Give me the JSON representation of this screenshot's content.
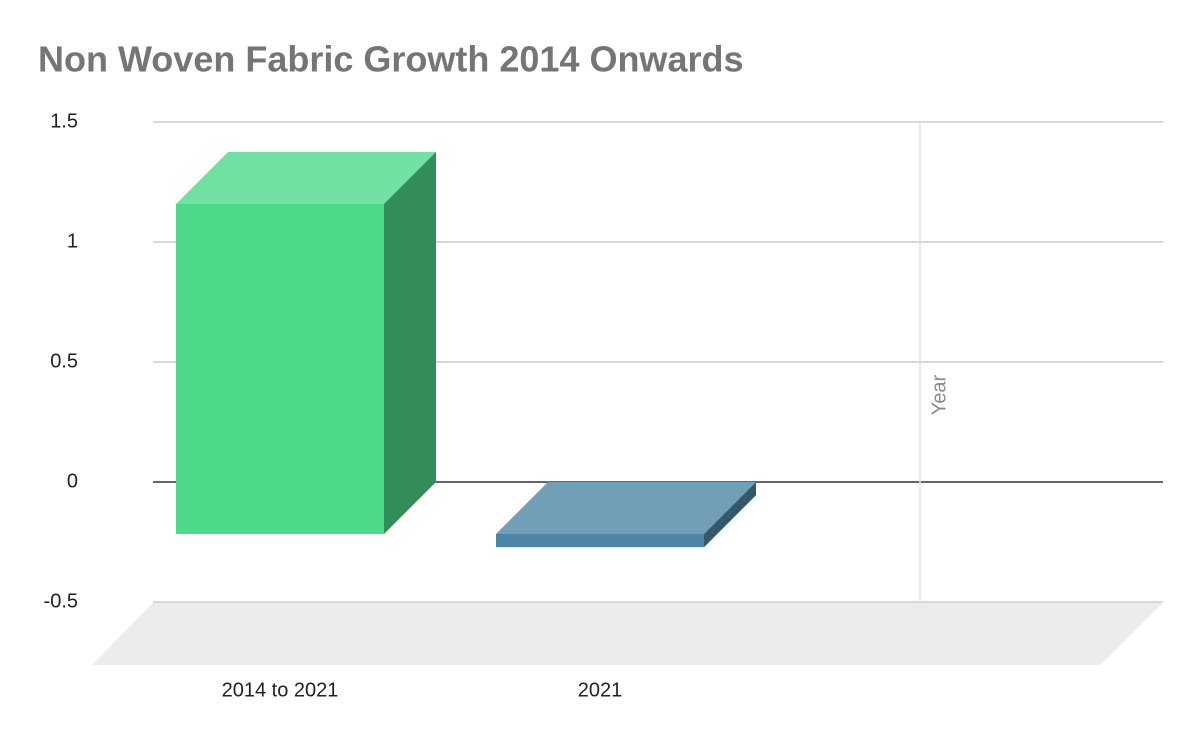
{
  "chart_data": {
    "type": "bar3d",
    "title": "Non Woven Fabric Growth 2014 Onwards",
    "categories": [
      "2014 to 2021",
      "2021"
    ],
    "values": [
      1.375,
      -0.055
    ],
    "colors": [
      "#4dd98a",
      "#4e87a5"
    ],
    "annotation": "Year",
    "ylim": [
      -0.5,
      1.5
    ],
    "yticks": [
      1.5,
      1.0,
      0.5,
      0.0,
      -0.5
    ],
    "grid": true
  }
}
